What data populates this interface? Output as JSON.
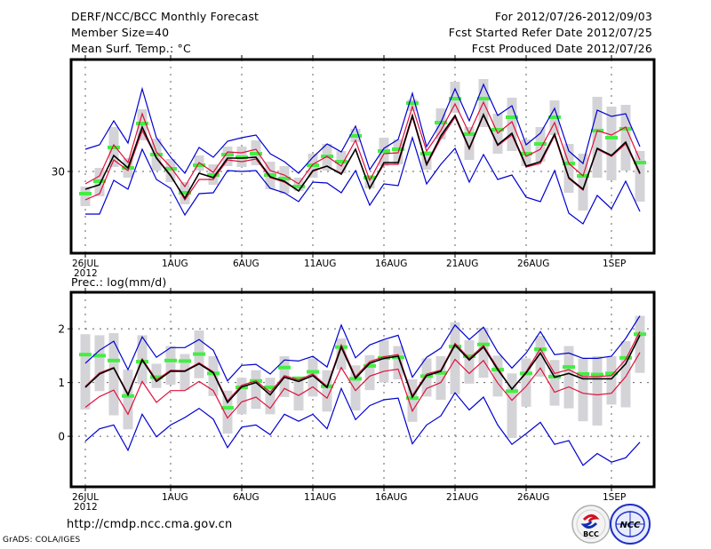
{
  "header": {
    "title": "DERF/NCC/BCC Monthly Forecast",
    "member_size": "Member Size=40",
    "variable": "Mean Surf. Temp.: °C",
    "period": "For 2012/07/26-2012/09/03",
    "started": "Fcst Started Refer Date 2012/07/25",
    "produced": "Fcst Produced Date 2012/07/26"
  },
  "footer": {
    "url": "http://cmdp.ncc.cma.gov.cn",
    "credit": "GrADS: COLA/IGES",
    "logo_bcc": "BCC",
    "logo_ncc": "NCC"
  },
  "colors": {
    "mean": "#000000",
    "spread": "#e0103a",
    "extreme": "#0000d0",
    "marker": "#44ee44",
    "range_bar": "#d4d4d8",
    "grid": "#606060"
  },
  "chart_data": [
    {
      "type": "line",
      "title": "Mean Surf. Temp.: °C",
      "xlabel": "",
      "ylabel": "°C",
      "x_start": "2012-07-26",
      "n_days": 40,
      "x_ticks": [
        {
          "day": 0,
          "label": "26JUL",
          "sublabel": "2012"
        },
        {
          "day": 6,
          "label": "1AUG"
        },
        {
          "day": 11,
          "label": "6AUG"
        },
        {
          "day": 16,
          "label": "11AUG"
        },
        {
          "day": 21,
          "label": "16AUG"
        },
        {
          "day": 26,
          "label": "21AUG"
        },
        {
          "day": 31,
          "label": "26AUG"
        },
        {
          "day": 37,
          "label": "1SEP"
        }
      ],
      "y_ticks": [
        {
          "value": 30,
          "label": "30"
        }
      ],
      "ylim": [
        20.8,
        42.6
      ],
      "grid": true,
      "series": [
        {
          "name": "range_high",
          "role": "bar_top",
          "values": [
            28.3,
            30.4,
            35.0,
            31.5,
            37.0,
            33.7,
            31.4,
            28.8,
            31.8,
            30.8,
            32.8,
            32.8,
            33.5,
            31.1,
            30.6,
            29.3,
            32.0,
            33.1,
            32.3,
            34.8,
            29.6,
            33.8,
            33.6,
            38.1,
            32.3,
            37.1,
            40.1,
            35.0,
            40.4,
            36.5,
            38.3,
            33.6,
            35.0,
            38.0,
            33.1,
            32.0,
            38.4,
            37.3,
            37.5,
            32.3
          ]
        },
        {
          "name": "range_low",
          "role": "bar_bottom",
          "values": [
            26.1,
            27.2,
            30.5,
            29.3,
            33.5,
            30.1,
            28.8,
            26.3,
            30.1,
            28.5,
            30.6,
            30.5,
            30.7,
            28.0,
            27.5,
            27.8,
            29.3,
            30.1,
            29.8,
            33.3,
            28.1,
            30.6,
            30.8,
            36.8,
            30.2,
            33.6,
            36.6,
            31.3,
            35.0,
            32.0,
            32.3,
            30.6,
            31.1,
            34.1,
            27.6,
            25.6,
            29.3,
            29.0,
            30.1,
            26.6
          ]
        },
        {
          "name": "max",
          "role": "blue",
          "values": [
            32.5,
            33.0,
            35.7,
            33.2,
            39.3,
            33.8,
            31.6,
            29.8,
            32.7,
            31.6,
            33.4,
            33.8,
            34.1,
            32.0,
            31.1,
            29.8,
            31.6,
            33.1,
            32.2,
            35.1,
            30.2,
            32.6,
            33.6,
            38.8,
            32.8,
            35.5,
            39.3,
            35.7,
            39.8,
            36.3,
            37.4,
            33.0,
            34.3,
            37.1,
            32.3,
            30.9,
            36.9,
            36.2,
            36.5,
            32.8
          ]
        },
        {
          "name": "min",
          "role": "blue",
          "values": [
            25.2,
            25.2,
            29.0,
            28.0,
            32.5,
            29.1,
            28.1,
            25.1,
            27.5,
            27.6,
            30.1,
            30.0,
            30.1,
            28.1,
            27.6,
            26.6,
            28.8,
            28.7,
            27.6,
            30.1,
            26.2,
            28.6,
            28.4,
            33.8,
            28.6,
            30.8,
            32.6,
            28.8,
            31.9,
            29.1,
            29.6,
            27.1,
            26.6,
            30.1,
            25.3,
            24.1,
            27.3,
            25.8,
            28.9,
            25.5
          ]
        },
        {
          "name": "upper",
          "role": "red",
          "values": [
            28.6,
            29.5,
            33.0,
            31.0,
            36.5,
            32.2,
            30.5,
            28.3,
            31.0,
            29.9,
            32.2,
            32.1,
            32.5,
            30.1,
            29.6,
            28.6,
            30.8,
            31.7,
            30.6,
            33.5,
            29.0,
            32.0,
            32.1,
            37.3,
            32.3,
            34.6,
            37.6,
            34.3,
            37.8,
            34.3,
            35.6,
            31.7,
            32.5,
            35.5,
            30.9,
            29.5,
            34.6,
            34.1,
            35.0,
            31.3
          ]
        },
        {
          "name": "lower",
          "role": "red",
          "values": [
            26.8,
            27.5,
            31.3,
            30.1,
            34.6,
            31.6,
            29.6,
            26.8,
            29.1,
            29.1,
            31.3,
            31.1,
            31.4,
            29.3,
            28.8,
            27.8,
            30.0,
            30.6,
            29.8,
            32.5,
            28.1,
            30.8,
            30.8,
            36.1,
            30.7,
            33.7,
            36.1,
            32.5,
            36.3,
            32.9,
            34.1,
            30.5,
            30.9,
            34.0,
            29.2,
            27.9,
            32.5,
            31.7,
            33.1,
            29.7
          ]
        },
        {
          "name": "ensemble_mean",
          "role": "black",
          "values": [
            28.0,
            28.5,
            31.8,
            30.4,
            35.0,
            31.5,
            29.5,
            27.0,
            29.8,
            29.3,
            31.5,
            31.5,
            31.6,
            29.4,
            28.9,
            27.8,
            30.1,
            30.6,
            29.7,
            32.5,
            28.1,
            31.0,
            31.0,
            36.3,
            30.8,
            34.0,
            36.3,
            32.6,
            36.4,
            33.0,
            34.3,
            30.6,
            31.1,
            34.2,
            29.3,
            28.0,
            32.6,
            31.8,
            33.3,
            29.8
          ]
        },
        {
          "name": "marker",
          "role": "green",
          "values": [
            27.5,
            28.9,
            32.7,
            30.4,
            35.4,
            31.9,
            30.3,
            27.6,
            30.7,
            29.6,
            31.9,
            31.6,
            32.0,
            29.6,
            29.2,
            28.3,
            30.7,
            31.7,
            31.1,
            34.0,
            29.3,
            32.3,
            32.5,
            37.7,
            32.0,
            35.5,
            38.2,
            34.2,
            38.2,
            34.7,
            36.1,
            32.0,
            33.1,
            36.1,
            30.9,
            29.5,
            34.6,
            33.8,
            34.8,
            31.0
          ]
        }
      ]
    },
    {
      "type": "line",
      "title": "Prec.: log(mm/d)",
      "xlabel": "",
      "ylabel": "log(mm/d)",
      "x_start": "2012-07-26",
      "n_days": 40,
      "x_ticks": [
        {
          "day": 0,
          "label": "26JUL",
          "sublabel": "2012"
        },
        {
          "day": 6,
          "label": "1AUG"
        },
        {
          "day": 11,
          "label": "6AUG"
        },
        {
          "day": 16,
          "label": "11AUG"
        },
        {
          "day": 21,
          "label": "16AUG"
        },
        {
          "day": 26,
          "label": "21AUG"
        },
        {
          "day": 31,
          "label": "26AUG"
        },
        {
          "day": 37,
          "label": "1SEP"
        }
      ],
      "y_ticks": [
        {
          "value": 0,
          "label": "0"
        },
        {
          "value": 1,
          "label": "1"
        },
        {
          "value": 2,
          "label": "2"
        }
      ],
      "ylim": [
        -0.94,
        2.68
      ],
      "grid": true,
      "series": [
        {
          "name": "range_high",
          "role": "bar_top",
          "values": [
            1.9,
            1.88,
            1.92,
            1.24,
            1.88,
            1.35,
            1.68,
            1.53,
            1.97,
            1.49,
            0.85,
            1.09,
            1.23,
            1.09,
            1.49,
            1.07,
            1.45,
            1.23,
            1.82,
            1.32,
            1.51,
            1.79,
            1.68,
            1.06,
            1.45,
            1.49,
            2.12,
            1.79,
            2.02,
            1.5,
            1.17,
            1.45,
            1.87,
            1.42,
            1.68,
            1.45,
            1.49,
            1.49,
            1.77,
            2.24
          ]
        },
        {
          "name": "range_low",
          "role": "bar_bottom",
          "values": [
            0.5,
            0.84,
            0.39,
            0.13,
            0.97,
            0.9,
            0.96,
            0.86,
            1.08,
            0.75,
            0.05,
            0.41,
            0.51,
            0.41,
            0.73,
            0.48,
            0.74,
            0.46,
            1.24,
            0.48,
            0.86,
            1.0,
            1.06,
            0.27,
            0.74,
            0.68,
            0.78,
            0.98,
            1.09,
            0.74,
            -0.03,
            0.55,
            1.11,
            0.57,
            0.52,
            0.28,
            0.2,
            0.59,
            0.54,
            1.18
          ]
        },
        {
          "name": "max",
          "role": "blue",
          "values": [
            1.36,
            1.6,
            1.77,
            1.24,
            1.85,
            1.47,
            1.65,
            1.65,
            1.8,
            1.6,
            1.03,
            1.32,
            1.34,
            1.16,
            1.42,
            1.4,
            1.49,
            1.29,
            2.07,
            1.46,
            1.7,
            1.8,
            1.88,
            1.1,
            1.47,
            1.64,
            2.07,
            1.8,
            2.03,
            1.57,
            1.27,
            1.55,
            1.95,
            1.52,
            1.55,
            1.45,
            1.45,
            1.49,
            1.82,
            2.24
          ]
        },
        {
          "name": "min",
          "role": "blue",
          "values": [
            -0.09,
            0.14,
            0.21,
            -0.26,
            0.41,
            -0.01,
            0.21,
            0.35,
            0.52,
            0.32,
            -0.21,
            0.17,
            0.21,
            0.03,
            0.41,
            0.28,
            0.41,
            0.14,
            0.89,
            0.31,
            0.57,
            0.68,
            0.71,
            -0.14,
            0.21,
            0.38,
            0.81,
            0.49,
            0.73,
            0.21,
            -0.15,
            0.05,
            0.26,
            -0.15,
            -0.08,
            -0.54,
            -0.32,
            -0.48,
            -0.4,
            -0.11
          ]
        },
        {
          "name": "upper",
          "role": "red",
          "values": [
            0.93,
            1.18,
            1.28,
            0.79,
            1.44,
            1.05,
            1.23,
            1.22,
            1.37,
            1.2,
            0.66,
            0.95,
            1.03,
            0.82,
            1.13,
            1.05,
            1.16,
            0.93,
            1.7,
            1.11,
            1.39,
            1.48,
            1.52,
            0.76,
            1.16,
            1.23,
            1.73,
            1.45,
            1.69,
            1.27,
            0.87,
            1.2,
            1.63,
            1.17,
            1.24,
            1.11,
            1.11,
            1.13,
            1.43,
            1.95
          ]
        },
        {
          "name": "lower",
          "role": "red",
          "values": [
            0.54,
            0.74,
            0.86,
            0.41,
            1.02,
            0.63,
            0.85,
            0.85,
            1.02,
            0.85,
            0.34,
            0.64,
            0.73,
            0.52,
            0.89,
            0.76,
            0.92,
            0.71,
            1.28,
            0.85,
            1.12,
            1.21,
            1.25,
            0.47,
            0.89,
            1.0,
            1.43,
            1.17,
            1.41,
            0.99,
            0.67,
            0.93,
            1.27,
            0.82,
            0.92,
            0.8,
            0.77,
            0.8,
            1.11,
            1.56
          ]
        },
        {
          "name": "ensemble_mean",
          "role": "black",
          "values": [
            0.91,
            1.16,
            1.27,
            0.77,
            1.42,
            1.02,
            1.21,
            1.21,
            1.35,
            1.18,
            0.63,
            0.92,
            1.0,
            0.77,
            1.1,
            1.02,
            1.13,
            0.91,
            1.66,
            1.08,
            1.36,
            1.45,
            1.49,
            0.73,
            1.13,
            1.21,
            1.7,
            1.42,
            1.66,
            1.24,
            0.88,
            1.18,
            1.55,
            1.1,
            1.17,
            1.07,
            1.07,
            1.07,
            1.35,
            1.88
          ]
        },
        {
          "name": "marker",
          "role": "green",
          "values": [
            1.52,
            1.5,
            1.41,
            0.75,
            1.39,
            1.1,
            1.41,
            1.4,
            1.53,
            1.17,
            0.53,
            0.91,
            1.03,
            0.91,
            1.28,
            1.08,
            1.2,
            0.93,
            1.66,
            1.07,
            1.31,
            1.46,
            1.47,
            0.71,
            1.12,
            1.18,
            1.67,
            1.49,
            1.71,
            1.24,
            0.84,
            1.17,
            1.62,
            1.11,
            1.29,
            1.16,
            1.15,
            1.17,
            1.46,
            1.9
          ]
        }
      ]
    }
  ]
}
